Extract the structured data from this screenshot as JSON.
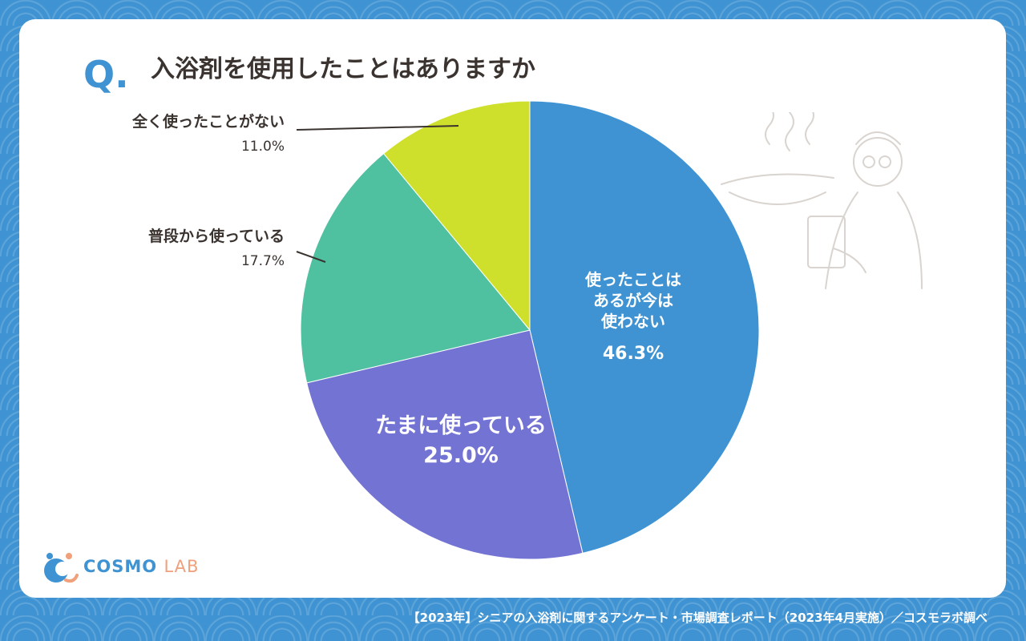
{
  "question": {
    "mark": "Q.",
    "text": "入浴剤を使用したことはありますか"
  },
  "chart_data": {
    "type": "pie",
    "slices": [
      {
        "label": "使ったことはあるが今は使わない",
        "label_lines": [
          "使ったことは",
          "あるが今は",
          "使わない"
        ],
        "value": 46.3,
        "value_label": "46.3%",
        "color": "#3f93d2",
        "label_position": "inside"
      },
      {
        "label": "たまに使っている",
        "label_lines": [
          "たまに使っている"
        ],
        "value": 25.0,
        "value_label": "25.0%",
        "color": "#7373d4",
        "label_position": "inside"
      },
      {
        "label": "普段から使っている",
        "label_lines": [
          "普段から使っている"
        ],
        "value": 17.7,
        "value_label": "17.7%",
        "color": "#4fc1a0",
        "label_position": "outside"
      },
      {
        "label": "全く使ったことがない",
        "label_lines": [
          "全く使ったことがない"
        ],
        "value": 11.0,
        "value_label": "11.0%",
        "color": "#cfe02c",
        "label_position": "outside"
      }
    ],
    "start_angle": "top",
    "direction": "clockwise"
  },
  "logo": {
    "main": "COSMO",
    "sub": "LAB"
  },
  "footer": "【2023年】シニアの入浴剤に関するアンケート・市場調査レポート（2023年4月実施）／コスモラボ調べ",
  "colors": {
    "background": "#3f93d2",
    "card": "#ffffff",
    "text": "#3a3330",
    "accent": "#3f93d2",
    "logo_accent": "#f0a07a"
  }
}
